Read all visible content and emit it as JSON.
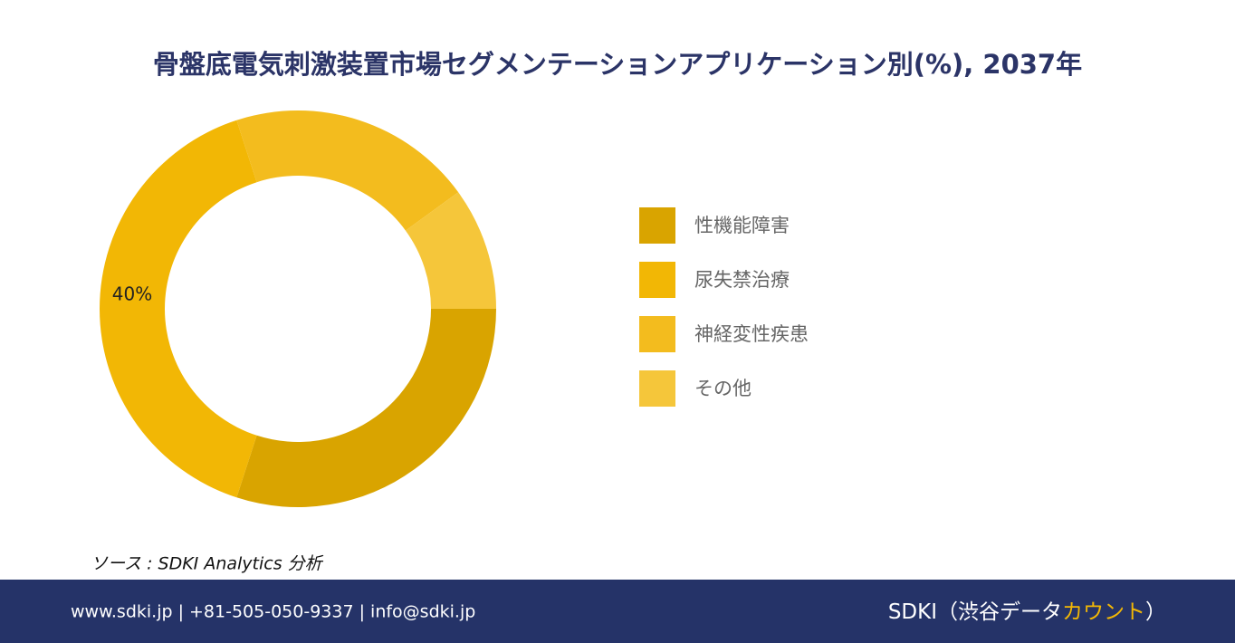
{
  "chart_data": {
    "type": "donut",
    "title": "骨盤底電気刺激装置市場セグメンテーションアプリケーション別(%), 2037年",
    "categories": [
      "性機能障害",
      "尿失禁治療",
      "神経変性疾患",
      "その他"
    ],
    "values": [
      30,
      40,
      20,
      10
    ],
    "value_labels": [
      null,
      "40%",
      null,
      null
    ],
    "colors": [
      "#D9A400",
      "#F2B705",
      "#F3BC1E",
      "#F5C63A"
    ],
    "legend": "right"
  },
  "source": "ソース : SDKI Analytics 分析",
  "footer": {
    "contact": "www.sdki.jp | +81-505-050-9337 | info@sdki.jp",
    "brand": "SDKI（渋谷データ",
    "brand_accent": "カウント",
    "brand_close": "）"
  }
}
